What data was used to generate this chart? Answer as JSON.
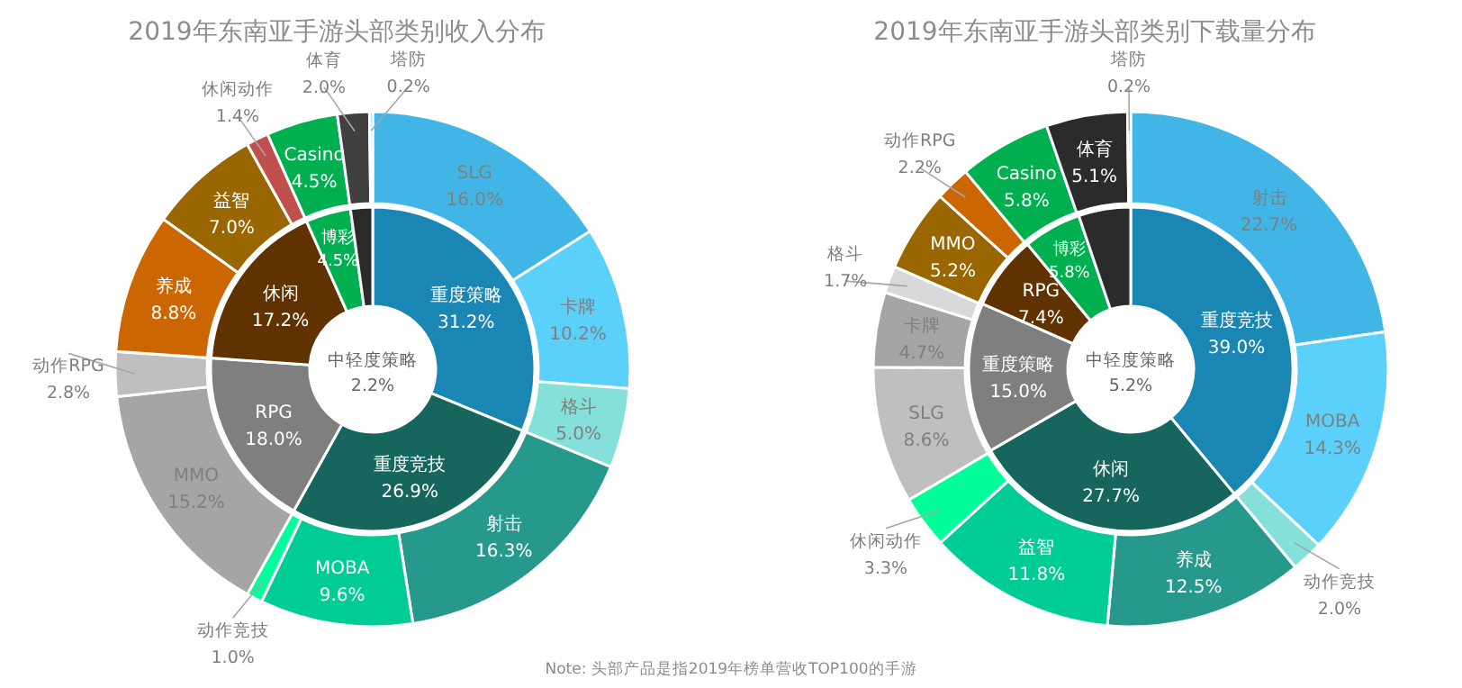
{
  "chart_data": [
    {
      "type": "donut",
      "title": "2019年东南亚手游头部类别收入分布",
      "categories": [
        "SLG",
        "卡牌",
        "格斗",
        "射击",
        "MOBA",
        "动作竞技",
        "MMO",
        "动作RPG",
        "养成",
        "益智",
        "休闲动作",
        "Casino",
        "体育",
        "塔防"
      ],
      "values": [
        16.0,
        10.2,
        5.0,
        16.3,
        9.6,
        1.0,
        15.2,
        2.8,
        8.8,
        7.0,
        1.4,
        4.5,
        2.0,
        0.2
      ],
      "value_labels": [
        "16.0%",
        "10.2%",
        "5.0%",
        "16.3%",
        "9.6%",
        "1.0%",
        "15.2%",
        "2.8%",
        "8.8%",
        "7.0%",
        "1.4%",
        "4.5%",
        "2.0%",
        "0.2%"
      ],
      "colors": [
        "#41b6e6",
        "#5bd0fb",
        "#84e0d8",
        "#26998c",
        "#00cc96",
        "#00ff99",
        "#a5a5a5",
        "#bfbfbf",
        "#cc6600",
        "#996600",
        "#c0504d",
        "#00b050",
        "#404040",
        "#5bd0fb"
      ]
    },
    {
      "type": "donut",
      "categories": [
        "重度策略",
        "重度竞技",
        "RPG",
        "休闲",
        "博彩",
        "中轻度策略"
      ],
      "values": [
        31.2,
        26.9,
        18.0,
        17.2,
        4.5,
        2.2
      ],
      "value_labels": [
        "31.2%",
        "26.9%",
        "18.0%",
        "17.2%",
        "4.5%",
        "2.2%"
      ],
      "colors": [
        "#1a86b4",
        "#17665e",
        "#7f7f7f",
        "#5f3200",
        "#00b050",
        "#2b2b2b"
      ]
    },
    {
      "type": "donut",
      "title": "2019年东南亚手游头部类别下载量分布",
      "categories": [
        "射击",
        "MOBA",
        "动作竞技",
        "养成",
        "益智",
        "休闲动作",
        "SLG",
        "卡牌",
        "格斗",
        "MMO",
        "动作RPG",
        "Casino",
        "体育",
        "塔防"
      ],
      "values": [
        22.7,
        14.3,
        2.0,
        12.5,
        11.8,
        3.3,
        8.6,
        4.7,
        1.7,
        5.2,
        2.2,
        5.8,
        5.1,
        0.2
      ],
      "value_labels": [
        "22.7%",
        "14.3%",
        "2.0%",
        "12.5%",
        "11.8%",
        "3.3%",
        "8.6%",
        "4.7%",
        "1.7%",
        "5.2%",
        "2.2%",
        "5.8%",
        "5.1%",
        "0.2%"
      ],
      "colors": [
        "#41b6e6",
        "#5bd0fb",
        "#84e0d8",
        "#26998c",
        "#00cc96",
        "#00ff99",
        "#bfbfbf",
        "#a5a5a5",
        "#d9d9d9",
        "#996600",
        "#cc6600",
        "#00b050",
        "#2b2b2b",
        "#5bd0fb"
      ],
      "annotations": [
        "Note: 头部产品是指2019年榜单营收TOP100的手游"
      ]
    },
    {
      "type": "donut",
      "categories": [
        "重度竞技",
        "休闲",
        "重度策略",
        "RPG",
        "博彩",
        "中轻度策略"
      ],
      "values": [
        39.0,
        27.7,
        15.0,
        7.4,
        5.8,
        5.2
      ],
      "value_labels": [
        "39.0%",
        "27.7%",
        "15.0%",
        "7.4%",
        "5.8%",
        "5.2%"
      ],
      "colors": [
        "#1a86b4",
        "#17665e",
        "#7f7f7f",
        "#5f3200",
        "#00b050",
        "#2b2b2b"
      ]
    }
  ]
}
